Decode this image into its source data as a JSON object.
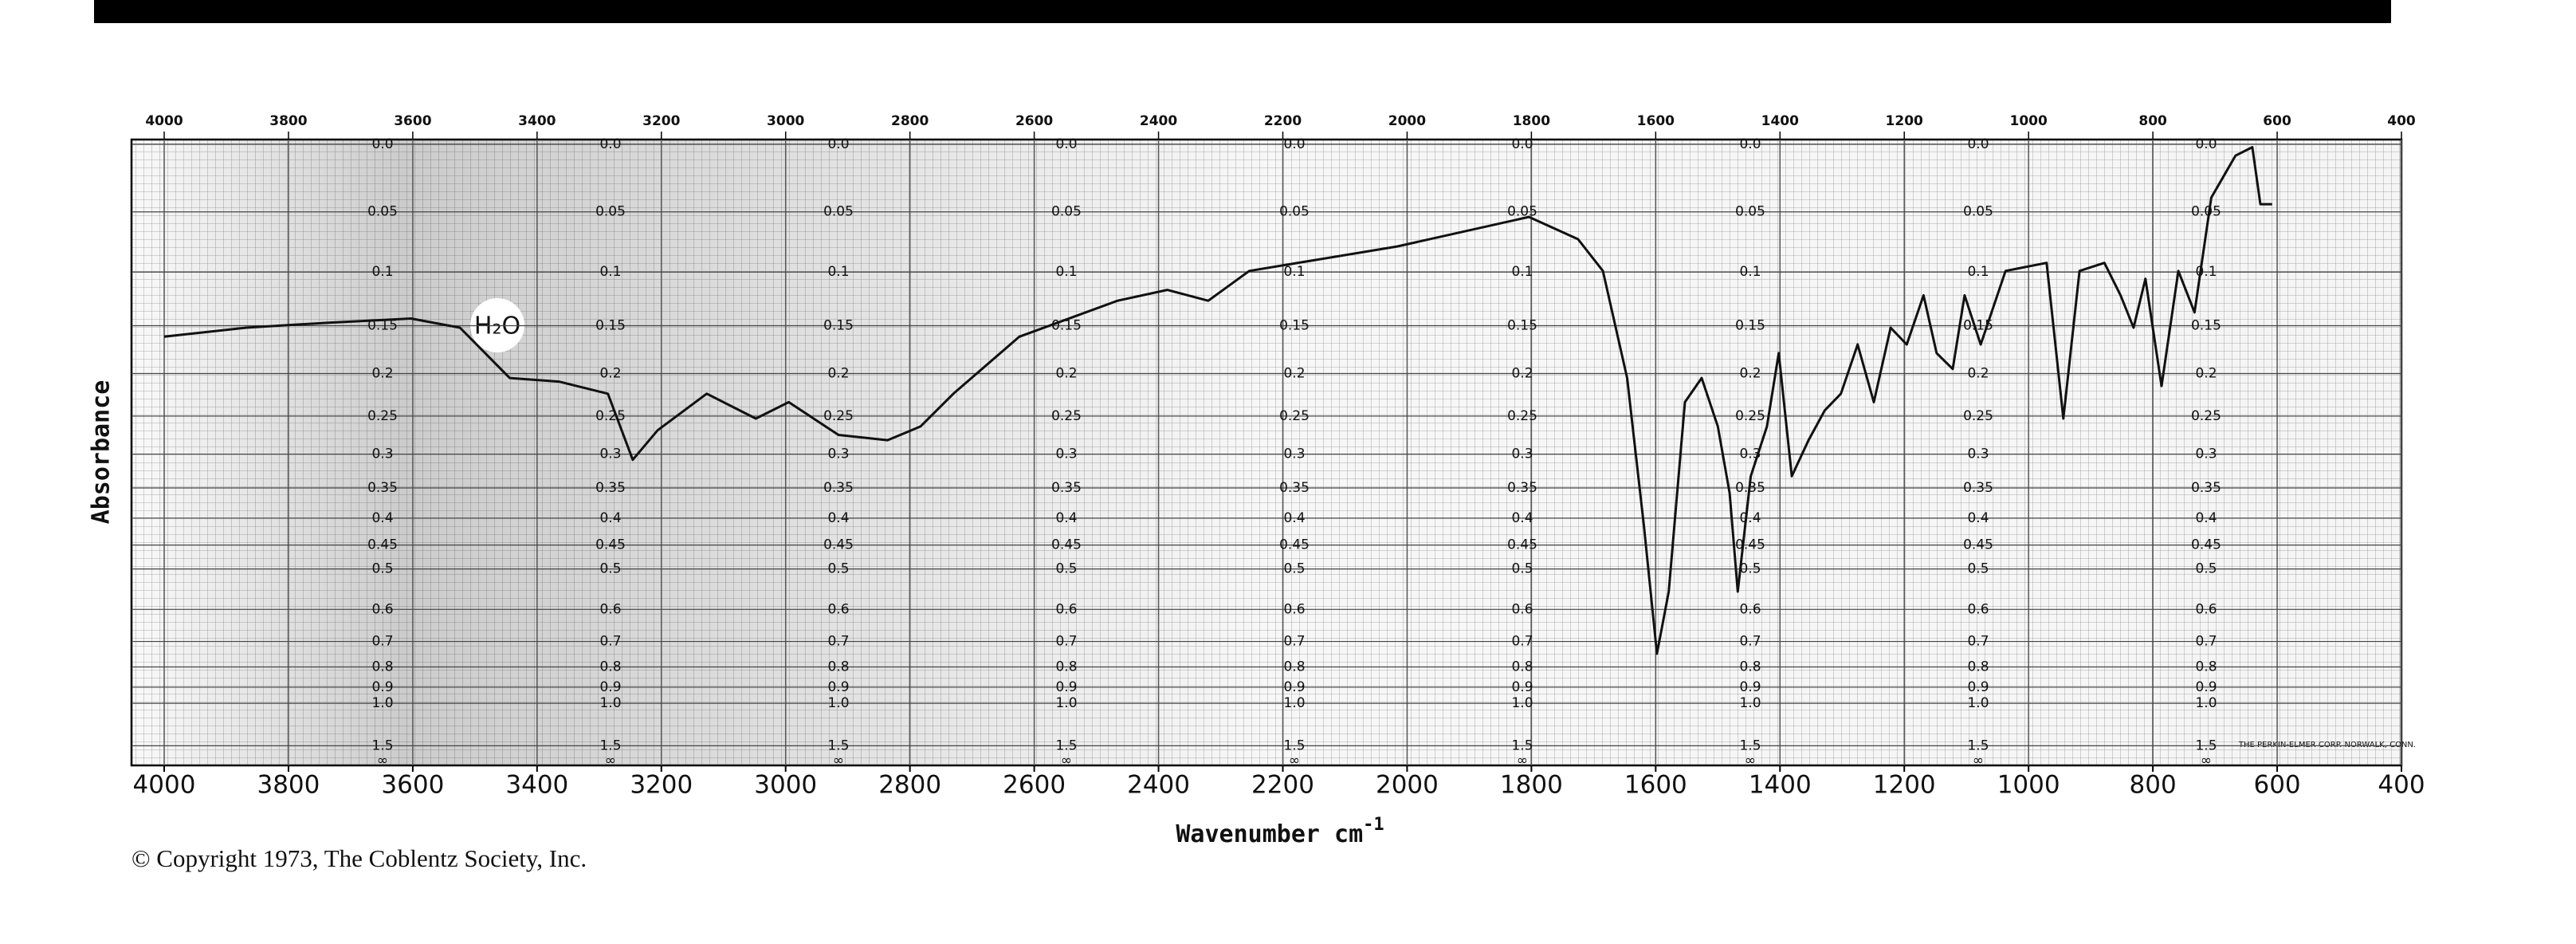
{
  "chart_data": {
    "type": "line",
    "x_label": "Wavenumber cm",
    "x_label_superscript": "-1",
    "y_label": "Absorbance",
    "annotation": "H₂O",
    "copyright": "© Copyright 1973, The Coblentz Society, Inc.",
    "imprint": "THE PERKIN-ELMER CORP. NORWALK, CONN.",
    "xlim": [
      4000,
      400
    ],
    "xticks": [
      4000,
      3800,
      3600,
      3400,
      3200,
      3000,
      2800,
      2600,
      2400,
      2200,
      2000,
      1800,
      1600,
      1400,
      1200,
      1000,
      800,
      600,
      400
    ],
    "x2ticks": [
      4000,
      3800,
      3600,
      3400,
      3200,
      3000,
      2800,
      2600,
      2400,
      2200,
      2000,
      1800,
      1600,
      1400,
      1200,
      1000,
      800,
      600,
      400
    ],
    "y_scale": "transmittance",
    "yticks": [
      {
        "value": 0,
        "label": "0.0"
      },
      0.05,
      0.1,
      0.15,
      0.2,
      0.25,
      0.3,
      0.35,
      0.4,
      0.45,
      0.5,
      0.6,
      0.7,
      0.8,
      0.9,
      {
        "value": 1,
        "label": "1.0"
      },
      1.5
    ],
    "y_infinity_label": "∞",
    "grid": true,
    "color": "#111111",
    "x": [
      4000,
      3868,
      3735,
      3603,
      3524,
      3444,
      3365,
      3286,
      3246,
      3206,
      3127,
      3048,
      2995,
      2915,
      2836,
      2783,
      2730,
      2624,
      2466,
      2386,
      2320,
      2254,
      2016,
      1804,
      1725,
      1685,
      1646,
      1619,
      1598,
      1579,
      1553,
      1526,
      1500,
      1481,
      1468,
      1447,
      1421,
      1402,
      1381,
      1354,
      1328,
      1302,
      1275,
      1249,
      1222,
      1196,
      1169,
      1148,
      1122,
      1103,
      1077,
      1037,
      971,
      944,
      918,
      878,
      852,
      831,
      812,
      786,
      759,
      733,
      706,
      667,
      640,
      627,
      608
    ],
    "values": [
      0.161,
      0.152,
      0.147,
      0.143,
      0.152,
      0.205,
      0.209,
      0.223,
      0.308,
      0.268,
      0.223,
      0.253,
      0.233,
      0.274,
      0.281,
      0.263,
      0.223,
      0.161,
      0.126,
      0.116,
      0.126,
      0.099,
      0.078,
      0.054,
      0.072,
      0.099,
      0.205,
      0.413,
      0.745,
      0.553,
      0.233,
      0.205,
      0.263,
      0.358,
      0.553,
      0.332,
      0.263,
      0.178,
      0.332,
      0.281,
      0.243,
      0.223,
      0.169,
      0.233,
      0.152,
      0.169,
      0.121,
      0.178,
      0.195,
      0.121,
      0.169,
      0.099,
      0.092,
      0.253,
      0.099,
      0.092,
      0.121,
      0.152,
      0.106,
      0.214,
      0.099,
      0.137,
      0.039,
      0.008,
      0.002,
      0.044,
      0.044
    ]
  }
}
